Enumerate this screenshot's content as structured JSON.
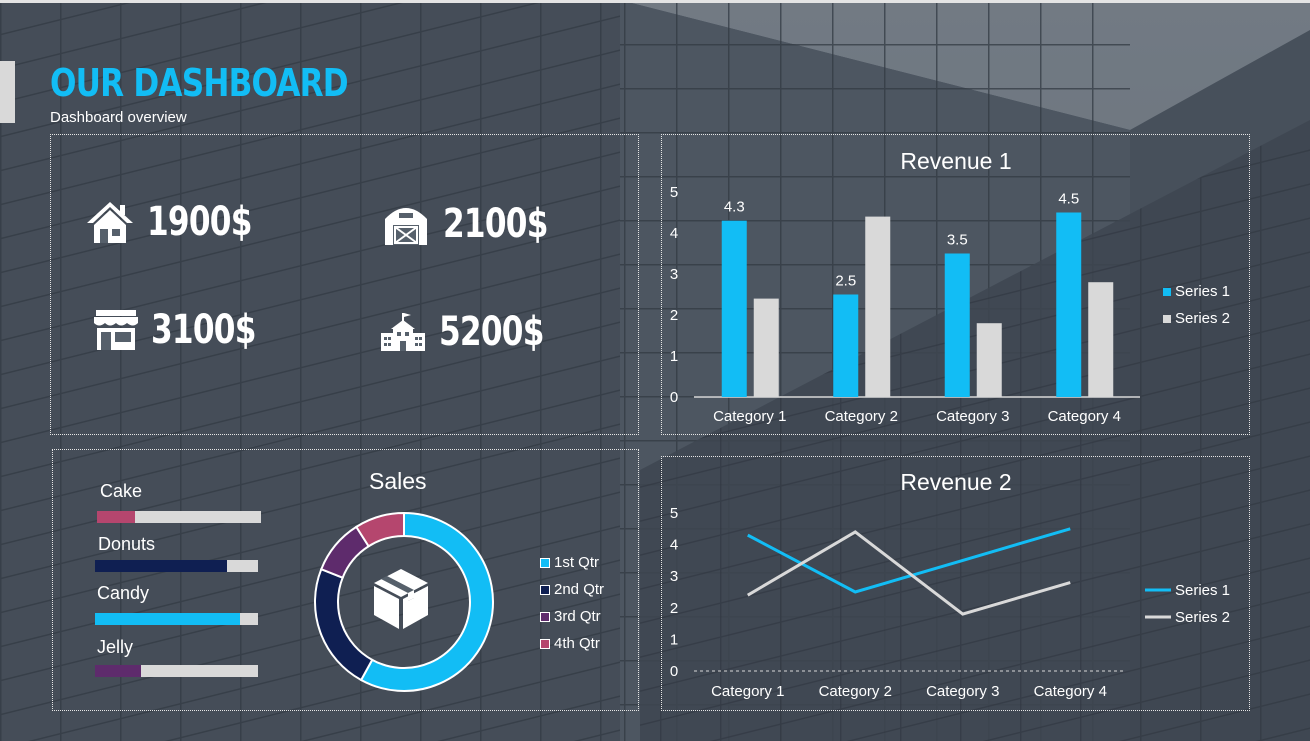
{
  "header": {
    "title": "OUR DASHBOARD",
    "subtitle": "Dashboard overview"
  },
  "colors": {
    "accent": "#12bdf5",
    "gray": "#d9d9d9",
    "navy": "#0f1f52",
    "purple": "#5e2b6c",
    "pink": "#b5466e"
  },
  "kpis": [
    {
      "icon": "house-icon",
      "value": "1900$"
    },
    {
      "icon": "barn-icon",
      "value": "2100$"
    },
    {
      "icon": "store-icon",
      "value": "3100$"
    },
    {
      "icon": "school-icon",
      "value": "5200$"
    }
  ],
  "sales": {
    "title": "Sales",
    "center_icon": "box-icon",
    "products": [
      {
        "label": "Cake",
        "fraction": 0.23,
        "color": "#b5466e"
      },
      {
        "label": "Donuts",
        "fraction": 0.81,
        "color": "#0f1f52"
      },
      {
        "label": "Candy",
        "fraction": 0.89,
        "color": "#12bdf5"
      },
      {
        "label": "Jelly",
        "fraction": 0.28,
        "color": "#5e2b6c"
      }
    ]
  },
  "chart_data": [
    {
      "type": "bar",
      "title": "Revenue 1",
      "categories": [
        "Category 1",
        "Category 2",
        "Category 3",
        "Category 4"
      ],
      "series": [
        {
          "name": "Series 1",
          "values": [
            4.3,
            2.5,
            3.5,
            4.5
          ],
          "color": "#12bdf5",
          "data_labels": [
            "4.3",
            "2.5",
            "3.5",
            "4.5"
          ]
        },
        {
          "name": "Series 2",
          "values": [
            2.4,
            4.4,
            1.8,
            2.8
          ],
          "color": "#d9d9d9"
        }
      ],
      "ylim": [
        0,
        5
      ],
      "yticks": [
        "0",
        "1",
        "2",
        "3",
        "4",
        "5"
      ],
      "legend": "right",
      "grid": false
    },
    {
      "type": "line",
      "title": "Revenue 2",
      "categories": [
        "Category 1",
        "Category 2",
        "Category 3",
        "Category 4"
      ],
      "series": [
        {
          "name": "Series 1",
          "values": [
            4.3,
            2.5,
            3.5,
            4.5
          ],
          "color": "#12bdf5"
        },
        {
          "name": "Series 2",
          "values": [
            2.4,
            4.4,
            1.8,
            2.8
          ],
          "color": "#d9d9d9"
        }
      ],
      "ylim": [
        0,
        5
      ],
      "yticks": [
        "0",
        "1",
        "2",
        "3",
        "4",
        "5"
      ],
      "legend": "right",
      "grid": false
    },
    {
      "type": "pie",
      "title": "Sales",
      "categories": [
        "1st Qtr",
        "2nd Qtr",
        "3rd Qtr",
        "4th Qtr"
      ],
      "values": [
        58,
        23,
        10,
        9
      ],
      "colors": [
        "#12bdf5",
        "#0f1f52",
        "#5e2b6c",
        "#b5466e"
      ],
      "legend": "right"
    }
  ]
}
